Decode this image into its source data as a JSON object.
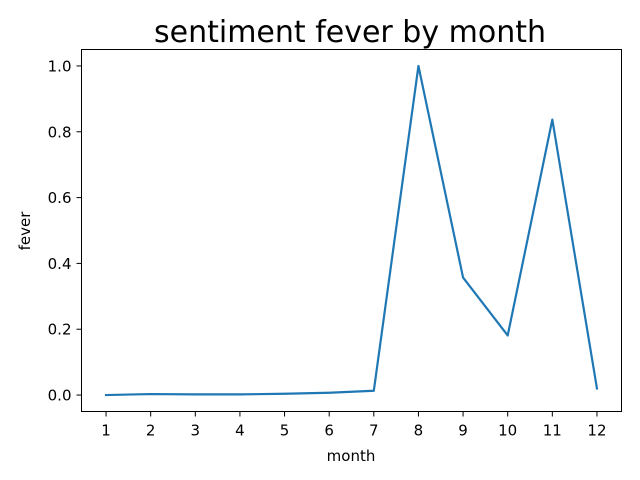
{
  "chart_data": {
    "type": "line",
    "title": "sentiment fever by month",
    "xlabel": "month",
    "ylabel": "fever",
    "x": [
      1,
      2,
      3,
      4,
      5,
      6,
      7,
      8,
      9,
      10,
      11,
      12
    ],
    "series": [
      {
        "values": [
          0.0,
          0.003,
          0.002,
          0.002,
          0.004,
          0.007,
          0.013,
          1.0,
          0.357,
          0.181,
          0.837,
          0.02
        ],
        "color": "#1f77b4"
      }
    ],
    "xticks": [
      "1",
      "2",
      "3",
      "4",
      "5",
      "6",
      "7",
      "8",
      "9",
      "10",
      "11",
      "12"
    ],
    "yticks": [
      "0.0",
      "0.2",
      "0.4",
      "0.6",
      "0.8",
      "1.0"
    ],
    "xlim": [
      0.45,
      12.55
    ],
    "ylim": [
      -0.05,
      1.05
    ],
    "grid": false,
    "legend": false
  }
}
